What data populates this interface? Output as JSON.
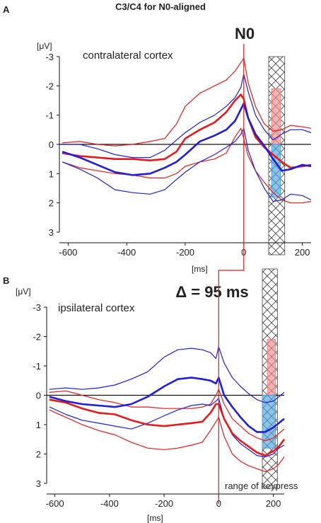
{
  "figure": {
    "title": "C3/C4 for N0-aligned",
    "n0_label": "N0",
    "delta_label": "Δ = 95 ms",
    "keypress_label": "range of keypress"
  },
  "chart_data": [
    {
      "type": "line",
      "panel": "A",
      "annotation": "contralateral cortex",
      "ylabel": "[μV]",
      "xlabel": "[ms]",
      "xlim": [
        -630,
        230
      ],
      "ylim": [
        3,
        -3
      ],
      "y_inverted": true,
      "xticks": [
        -600,
        -400,
        -200,
        0,
        200
      ],
      "yticks": [
        -3,
        -2,
        -1,
        0,
        1,
        2,
        3
      ],
      "ytick_labels": [
        "-3",
        "-2",
        "-1",
        "0",
        "1",
        "2",
        "3"
      ],
      "zero_line": 0,
      "n0_marker_ms": 0,
      "keypress_range_ms": [
        85,
        140
      ],
      "colors": {
        "red": "#e41a1c",
        "blue": "#1f1fd6",
        "pink": "#f08a8a",
        "lightblue": "#4fa3e0"
      },
      "series": [
        {
          "color": "red",
          "width": 2.6,
          "x": [
            -620,
            -560,
            -500,
            -440,
            -380,
            -320,
            -270,
            -230,
            -200,
            -150,
            -100,
            -60,
            -30,
            -10,
            0,
            15,
            40,
            70,
            100,
            130,
            160,
            200,
            230
          ],
          "y": [
            0.3,
            0.4,
            0.45,
            0.5,
            0.5,
            0.55,
            0.5,
            0.25,
            -0.2,
            -0.5,
            -0.75,
            -1.1,
            -1.5,
            -1.7,
            -1.55,
            -0.9,
            -0.25,
            0.1,
            0.35,
            0.6,
            0.8,
            0.75,
            0.7
          ]
        },
        {
          "color": "red",
          "width": 1.2,
          "x": [
            -620,
            -560,
            -500,
            -440,
            -380,
            -320,
            -270,
            -230,
            -200,
            -150,
            -100,
            -60,
            -30,
            -10,
            0,
            15,
            40,
            70,
            100,
            130,
            160,
            200,
            230
          ],
          "y": [
            -0.05,
            -0.1,
            0.0,
            0.05,
            0.0,
            -0.1,
            -0.2,
            -0.7,
            -1.3,
            -1.75,
            -2.0,
            -2.2,
            -2.5,
            -2.8,
            -2.95,
            -2.1,
            -1.3,
            -0.7,
            -0.45,
            -0.5,
            -0.65,
            -0.6,
            -0.55
          ]
        },
        {
          "color": "red",
          "width": 1.2,
          "x": [
            -620,
            -560,
            -500,
            -440,
            -380,
            -320,
            -270,
            -230,
            -200,
            -150,
            -100,
            -60,
            -30,
            -10,
            0,
            15,
            40,
            70,
            100,
            130,
            160,
            200,
            230
          ],
          "y": [
            0.6,
            0.8,
            0.9,
            1.0,
            1.05,
            1.15,
            1.15,
            1.0,
            0.75,
            0.6,
            0.5,
            0.3,
            -0.25,
            -0.55,
            -0.2,
            0.4,
            0.9,
            1.3,
            1.65,
            1.9,
            2.0,
            2.0,
            1.95
          ]
        },
        {
          "color": "blue",
          "width": 2.6,
          "x": [
            -620,
            -560,
            -500,
            -440,
            -380,
            -320,
            -270,
            -230,
            -200,
            -150,
            -100,
            -60,
            -30,
            -10,
            0,
            15,
            40,
            70,
            100,
            130,
            160,
            200,
            230
          ],
          "y": [
            0.25,
            0.45,
            0.7,
            0.95,
            1.05,
            1.0,
            0.8,
            0.6,
            0.35,
            -0.1,
            -0.3,
            -0.5,
            -0.8,
            -1.2,
            -1.4,
            -0.9,
            -0.35,
            0.05,
            0.5,
            0.9,
            0.85,
            0.7,
            0.75
          ]
        },
        {
          "color": "blue",
          "width": 1.2,
          "x": [
            -620,
            -560,
            -500,
            -440,
            -380,
            -320,
            -270,
            -230,
            -200,
            -150,
            -100,
            -60,
            -30,
            -10,
            0,
            15,
            40,
            70,
            100,
            130,
            160,
            200,
            230
          ],
          "y": [
            0.0,
            0.0,
            0.15,
            0.35,
            0.45,
            0.45,
            0.2,
            -0.15,
            -0.4,
            -0.75,
            -1.0,
            -1.3,
            -1.6,
            -1.95,
            -2.4,
            -1.8,
            -1.0,
            -0.5,
            -0.15,
            -0.35,
            -0.5,
            -0.5,
            -0.4
          ]
        },
        {
          "color": "blue",
          "width": 1.2,
          "x": [
            -620,
            -560,
            -500,
            -440,
            -380,
            -320,
            -270,
            -230,
            -200,
            -150,
            -100,
            -60,
            -30,
            -10,
            0,
            15,
            40,
            70,
            100,
            130,
            160,
            200,
            230
          ],
          "y": [
            0.6,
            0.85,
            1.15,
            1.55,
            1.65,
            1.7,
            1.55,
            1.2,
            0.95,
            0.6,
            0.35,
            0.1,
            -0.1,
            -0.35,
            -0.55,
            0.2,
            0.9,
            1.5,
            1.95,
            1.9,
            1.7,
            1.75,
            1.9
          ]
        }
      ],
      "bars": [
        {
          "color": "pink",
          "x_range": [
            95,
            125
          ],
          "y_range": [
            -1.9,
            0
          ]
        },
        {
          "color": "lightblue",
          "x_range": [
            95,
            125
          ],
          "y_range": [
            0,
            1.8
          ]
        }
      ]
    },
    {
      "type": "line",
      "panel": "B",
      "annotation": "ipsilateral cortex",
      "ylabel": "[μV]",
      "xlabel": "[ms]",
      "xlim": [
        -630,
        240
      ],
      "ylim": [
        3,
        -3
      ],
      "y_inverted": true,
      "xticks": [
        -600,
        -400,
        -200,
        0,
        200
      ],
      "yticks": [
        -3,
        -2,
        -1,
        0,
        1,
        2,
        3
      ],
      "ytick_labels": [
        "-3",
        "-2",
        "-1",
        "0",
        "1",
        "2",
        "3"
      ],
      "zero_line": 0,
      "n0_marker_ms": 0,
      "keypress_range_ms": [
        160,
        215
      ],
      "colors": {
        "red": "#e41a1c",
        "blue": "#1f1fd6",
        "pink": "#f08a8a",
        "lightblue": "#4fa3e0"
      },
      "series": [
        {
          "color": "red",
          "width": 2.6,
          "x": [
            -620,
            -560,
            -500,
            -440,
            -380,
            -320,
            -260,
            -200,
            -150,
            -100,
            -60,
            -30,
            -10,
            0,
            20,
            50,
            80,
            110,
            140,
            170,
            200,
            220,
            240
          ],
          "y": [
            0.15,
            0.25,
            0.45,
            0.6,
            0.65,
            0.85,
            1.0,
            1.05,
            1.0,
            0.95,
            0.9,
            0.6,
            0.3,
            0.3,
            0.8,
            1.3,
            1.55,
            1.75,
            1.95,
            2.05,
            1.9,
            1.75,
            1.5
          ]
        },
        {
          "color": "red",
          "width": 1.2,
          "x": [
            -620,
            -560,
            -500,
            -440,
            -380,
            -320,
            -260,
            -200,
            -150,
            -100,
            -60,
            -30,
            -10,
            0,
            20,
            50,
            80,
            110,
            140,
            170,
            200,
            220,
            240
          ],
          "y": [
            -0.1,
            -0.15,
            0.0,
            0.15,
            0.25,
            0.4,
            0.4,
            0.45,
            0.45,
            0.45,
            0.4,
            0.3,
            0.0,
            -0.2,
            0.3,
            0.8,
            1.05,
            1.3,
            1.45,
            1.55,
            1.45,
            1.3,
            1.15
          ]
        },
        {
          "color": "red",
          "width": 1.2,
          "x": [
            -620,
            -560,
            -500,
            -440,
            -380,
            -320,
            -260,
            -200,
            -150,
            -100,
            -60,
            -30,
            -10,
            0,
            20,
            50,
            80,
            110,
            140,
            170,
            200,
            220,
            240
          ],
          "y": [
            0.5,
            0.75,
            1.0,
            1.2,
            1.35,
            1.6,
            1.8,
            1.85,
            1.8,
            1.7,
            1.6,
            1.2,
            0.9,
            0.75,
            1.4,
            2.0,
            2.25,
            2.4,
            2.5,
            2.6,
            2.5,
            2.35,
            2.1
          ]
        },
        {
          "color": "blue",
          "width": 2.6,
          "x": [
            -620,
            -560,
            -500,
            -440,
            -380,
            -320,
            -260,
            -200,
            -150,
            -100,
            -60,
            -30,
            -10,
            0,
            20,
            50,
            80,
            110,
            140,
            170,
            200,
            220,
            240
          ],
          "y": [
            0.05,
            0.2,
            0.3,
            0.35,
            0.4,
            0.3,
            0.05,
            -0.3,
            -0.55,
            -0.6,
            -0.55,
            -0.5,
            -0.4,
            -0.6,
            0.0,
            0.4,
            0.75,
            1.05,
            1.25,
            1.25,
            1.1,
            0.95,
            0.8
          ]
        },
        {
          "color": "blue",
          "width": 1.2,
          "x": [
            -620,
            -560,
            -500,
            -440,
            -380,
            -320,
            -260,
            -200,
            -150,
            -100,
            -60,
            -30,
            -10,
            0,
            20,
            50,
            80,
            110,
            140,
            170,
            200,
            220,
            240
          ],
          "y": [
            -0.2,
            -0.25,
            -0.2,
            -0.25,
            -0.35,
            -0.55,
            -0.8,
            -1.3,
            -1.55,
            -1.6,
            -1.55,
            -1.45,
            -1.25,
            -1.65,
            -1.1,
            -0.6,
            -0.3,
            -0.05,
            0.15,
            0.25,
            0.2,
            0.05,
            -0.1
          ]
        },
        {
          "color": "blue",
          "width": 1.2,
          "x": [
            -620,
            -560,
            -500,
            -440,
            -380,
            -320,
            -260,
            -200,
            -150,
            -100,
            -60,
            -30,
            -10,
            0,
            20,
            50,
            80,
            110,
            140,
            170,
            200,
            220,
            240
          ],
          "y": [
            0.4,
            0.65,
            0.85,
            0.95,
            1.05,
            1.15,
            0.95,
            0.7,
            0.5,
            0.35,
            0.3,
            0.35,
            0.2,
            0.1,
            0.8,
            1.35,
            1.65,
            1.85,
            2.05,
            2.1,
            2.0,
            1.8,
            1.7
          ]
        }
      ],
      "bars": [
        {
          "color": "pink",
          "x_range": [
            178,
            208
          ],
          "y_range": [
            -1.9,
            0
          ]
        },
        {
          "color": "lightblue",
          "x_range": [
            160,
            208
          ],
          "y_range": [
            0,
            1.8
          ]
        }
      ]
    }
  ]
}
